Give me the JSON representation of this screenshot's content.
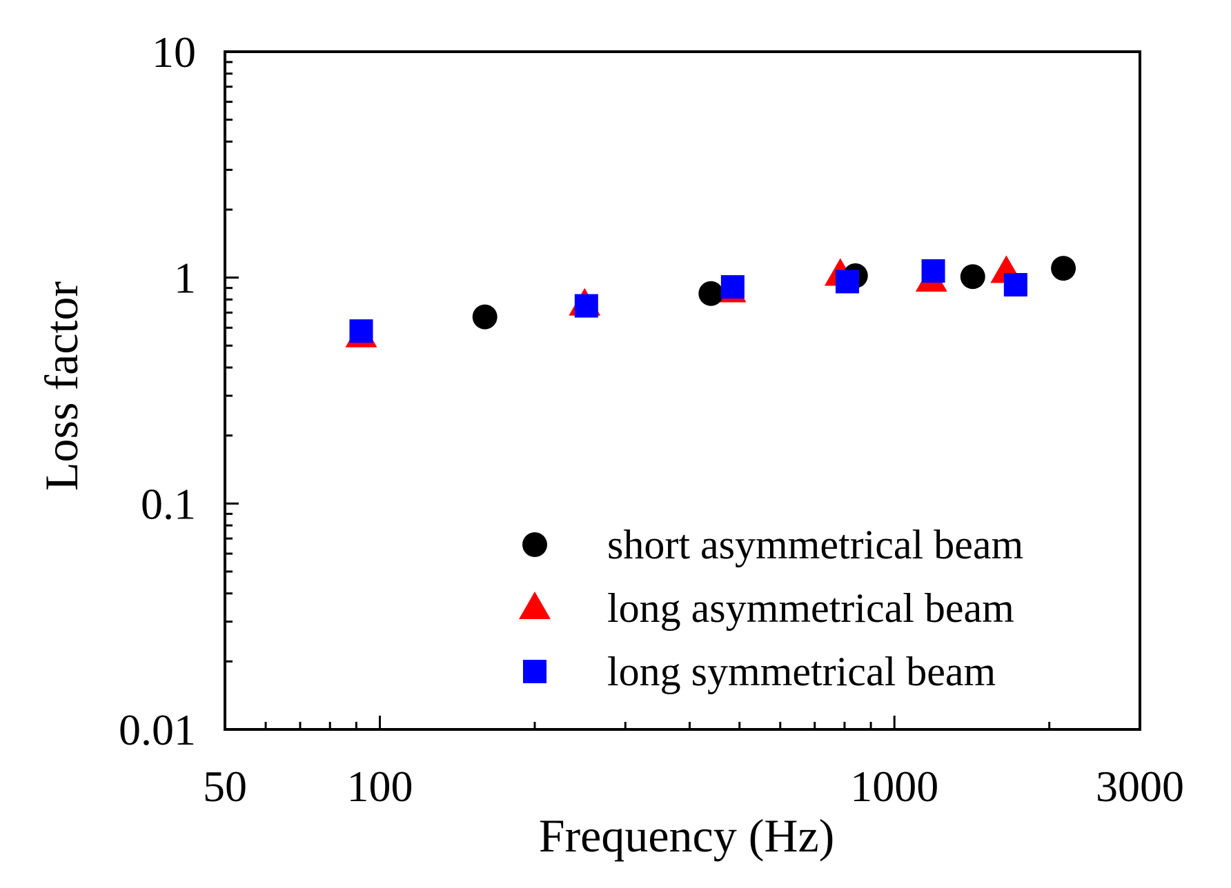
{
  "chart_data": {
    "type": "scatter",
    "title": "",
    "xlabel": "Frequency (Hz)",
    "ylabel": "Loss factor",
    "xscale": "log",
    "yscale": "log",
    "xlim": [
      50,
      3000
    ],
    "ylim": [
      0.01,
      10
    ],
    "x_tick_labels": [
      {
        "value": 50,
        "label": "50"
      },
      {
        "value": 100,
        "label": "100"
      },
      {
        "value": 1000,
        "label": "1000"
      },
      {
        "value": 3000,
        "label": "3000"
      }
    ],
    "y_tick_labels": [
      {
        "value": 0.01,
        "label": "0.01"
      },
      {
        "value": 0.1,
        "label": "0.1"
      },
      {
        "value": 1,
        "label": "1"
      },
      {
        "value": 10,
        "label": "10"
      }
    ],
    "grid": false,
    "legend_position": "bottom-right",
    "series": [
      {
        "name": "short asymmetrical beam",
        "marker": "circle",
        "color": "#000000",
        "points": [
          {
            "x": 160,
            "y": 0.67
          },
          {
            "x": 440,
            "y": 0.85
          },
          {
            "x": 840,
            "y": 1.02
          },
          {
            "x": 1420,
            "y": 1.01
          },
          {
            "x": 2130,
            "y": 1.1
          }
        ]
      },
      {
        "name": "long asymmetrical beam",
        "marker": "triangle",
        "color": "#ff0000",
        "points": [
          {
            "x": 92,
            "y": 0.55
          },
          {
            "x": 250,
            "y": 0.76
          },
          {
            "x": 480,
            "y": 0.87
          },
          {
            "x": 785,
            "y": 1.03
          },
          {
            "x": 1180,
            "y": 0.97
          },
          {
            "x": 1650,
            "y": 1.06
          }
        ]
      },
      {
        "name": "long symmetrical beam",
        "marker": "square",
        "color": "#0000ff",
        "points": [
          {
            "x": 92,
            "y": 0.58
          },
          {
            "x": 252,
            "y": 0.75
          },
          {
            "x": 485,
            "y": 0.91
          },
          {
            "x": 810,
            "y": 0.96
          },
          {
            "x": 1190,
            "y": 1.07
          },
          {
            "x": 1720,
            "y": 0.93
          }
        ]
      }
    ]
  }
}
